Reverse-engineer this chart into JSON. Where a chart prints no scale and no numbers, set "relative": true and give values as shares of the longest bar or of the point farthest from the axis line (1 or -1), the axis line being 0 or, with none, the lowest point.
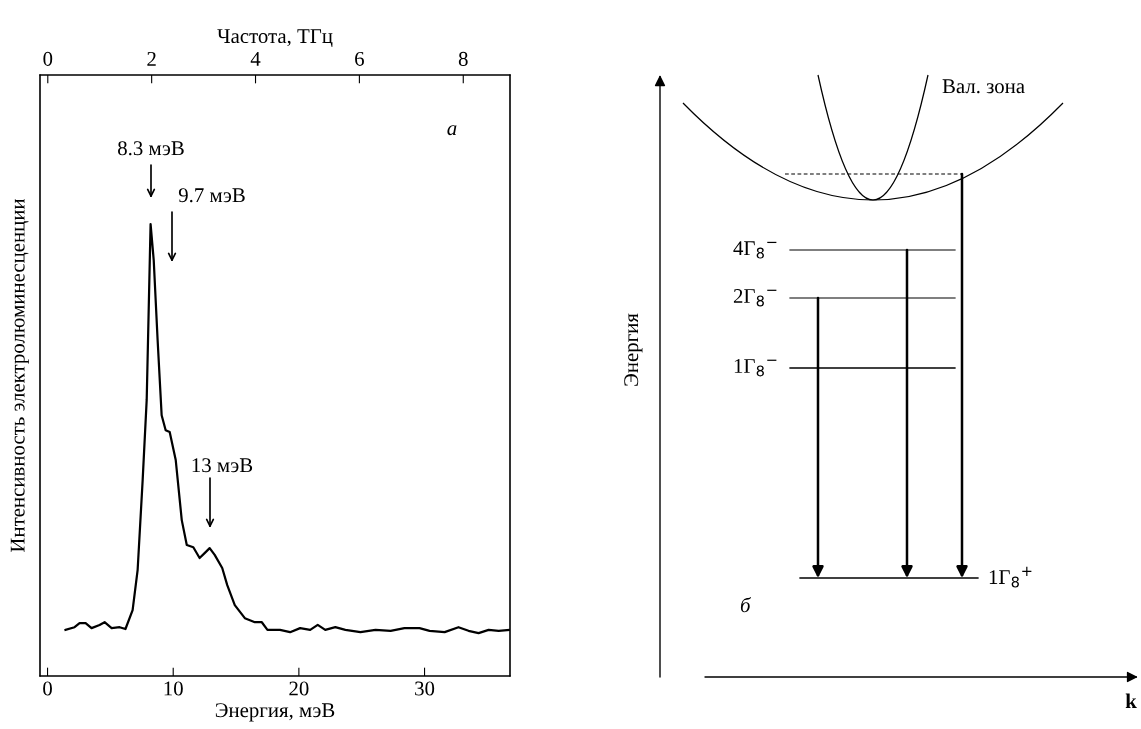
{
  "chart_data": [
    {
      "type": "line",
      "xlabel": "Энергия, мэВ",
      "ylabel": "Интенсивность электролюминесценции",
      "x2label": "Частота, ТГц",
      "relative": true,
      "tick_labels": "x",
      "xlim": [
        -0.6,
        36.8
      ],
      "xticks": [
        0,
        10,
        20,
        30
      ],
      "x2lim": [
        -0.15,
        8.9
      ],
      "x2ticks": [
        0,
        2,
        4,
        6,
        8
      ],
      "x": [
        1.43,
        2.15,
        2.55,
        3.03,
        3.5,
        4.14,
        4.54,
        5.1,
        5.74,
        6.2,
        6.77,
        7.17,
        7.57,
        7.89,
        8.2,
        8.45,
        8.76,
        9.08,
        9.4,
        9.72,
        10.2,
        10.68,
        11.08,
        11.6,
        12.1,
        12.5,
        12.9,
        13.3,
        13.9,
        14.3,
        14.9,
        15.7,
        16.5,
        17.05,
        17.5,
        18.5,
        19.3,
        20.1,
        20.9,
        21.5,
        22.1,
        22.9,
        23.7,
        24.9,
        26.1,
        27.3,
        28.4,
        29.6,
        30.4,
        31.6,
        32.7,
        33.5,
        34.3,
        35.1,
        35.9,
        36.7
      ],
      "series": [
        {
          "color": "#000000",
          "values": [
            0.102,
            0.108,
            0.117,
            0.117,
            0.106,
            0.113,
            0.119,
            0.106,
            0.108,
            0.104,
            0.146,
            0.235,
            0.434,
            0.611,
            1.0,
            0.92,
            0.743,
            0.577,
            0.544,
            0.54,
            0.478,
            0.345,
            0.29,
            0.285,
            0.261,
            0.272,
            0.283,
            0.268,
            0.239,
            0.201,
            0.157,
            0.128,
            0.119,
            0.119,
            0.102,
            0.102,
            0.097,
            0.106,
            0.102,
            0.113,
            0.102,
            0.108,
            0.102,
            0.097,
            0.102,
            0.1,
            0.106,
            0.106,
            0.1,
            0.097,
            0.108,
            0.1,
            0.095,
            0.102,
            0.1,
            0.102
          ]
        }
      ],
      "annotations": [
        "8.3 мэВ",
        "9.7 мэВ",
        "13 мэВ",
        "а"
      ]
    },
    {
      "type": "other",
      "xlabel": "k",
      "ylabel": "Энергия",
      "annotations": [
        "Вал. зона",
        "4Γ$_{8}$$^{−}$",
        "2Γ$_{8}$$^{−}$",
        "1Γ$_{8}$$^{−}$",
        "1Γ$_{8}$$^{+}$",
        "б"
      ]
    }
  ]
}
